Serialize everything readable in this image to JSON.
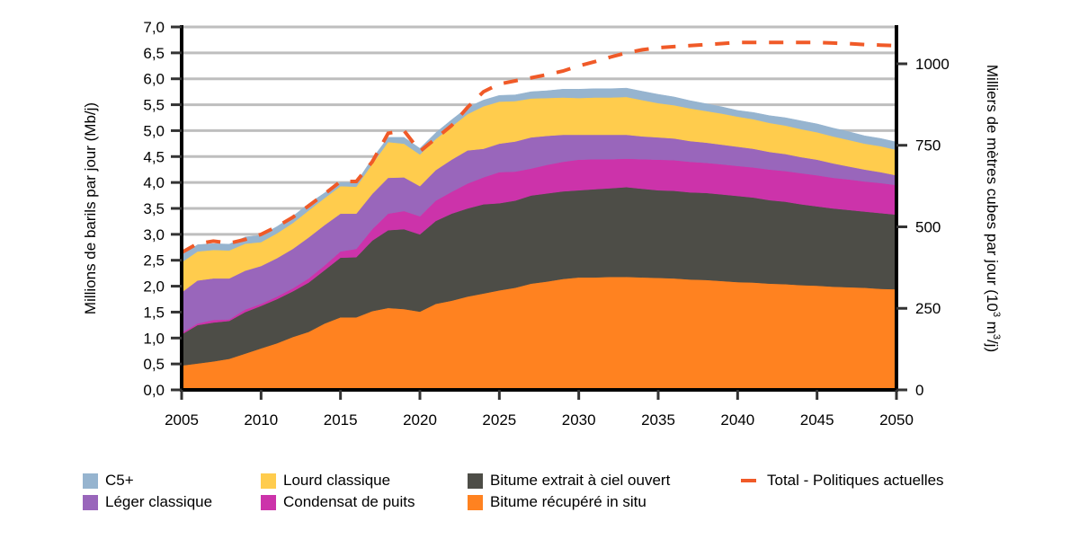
{
  "chart_data": {
    "type": "area",
    "stacked": true,
    "title": "",
    "xlabel": "",
    "ylabel": "Millions de barils par jour (Mb/j)",
    "y2label_main": "Milliers de mètres cubes par jour (10",
    "y2label_sup1": "3",
    "y2label_mid": " m",
    "y2label_sup2": "3",
    "y2label_end": "/j)",
    "xlim": [
      2005,
      2050
    ],
    "ylim": [
      0,
      7
    ],
    "y2lim": [
      0,
      1113
    ],
    "grid": true,
    "legend_position": "bottom",
    "x_ticks": [
      "2005",
      "2010",
      "2015",
      "2020",
      "2025",
      "2030",
      "2035",
      "2040",
      "2045",
      "2050"
    ],
    "y_ticks": [
      "0,0",
      "0,5",
      "1,0",
      "1,5",
      "2,0",
      "2,5",
      "3,0",
      "3,5",
      "4,0",
      "4,5",
      "5,0",
      "5,5",
      "6,0",
      "6,5",
      "7,0"
    ],
    "y2_ticks": [
      "0",
      "250",
      "500",
      "750",
      "1000"
    ],
    "x": [
      2005,
      2006,
      2007,
      2008,
      2009,
      2010,
      2011,
      2012,
      2013,
      2014,
      2015,
      2016,
      2017,
      2018,
      2019,
      2020,
      2021,
      2022,
      2023,
      2024,
      2025,
      2026,
      2027,
      2028,
      2029,
      2030,
      2031,
      2032,
      2033,
      2034,
      2035,
      2036,
      2037,
      2038,
      2039,
      2040,
      2041,
      2042,
      2043,
      2044,
      2045,
      2046,
      2047,
      2048,
      2049,
      2050
    ],
    "series": [
      {
        "name": "Bitume récupéré in situ",
        "color": "#FF8220",
        "values": [
          0.47,
          0.51,
          0.55,
          0.6,
          0.7,
          0.8,
          0.9,
          1.02,
          1.12,
          1.28,
          1.4,
          1.4,
          1.52,
          1.58,
          1.56,
          1.51,
          1.66,
          1.72,
          1.8,
          1.86,
          1.92,
          1.97,
          2.05,
          2.09,
          2.14,
          2.17,
          2.17,
          2.18,
          2.18,
          2.17,
          2.16,
          2.15,
          2.13,
          2.12,
          2.1,
          2.08,
          2.07,
          2.05,
          2.04,
          2.02,
          2.01,
          1.99,
          1.98,
          1.97,
          1.95,
          1.94
        ]
      },
      {
        "name": "Bitume extrait à ciel ouvert",
        "color": "#4D4D47",
        "values": [
          0.6,
          0.74,
          0.75,
          0.73,
          0.8,
          0.82,
          0.85,
          0.88,
          0.95,
          1.03,
          1.15,
          1.16,
          1.36,
          1.5,
          1.54,
          1.49,
          1.6,
          1.68,
          1.7,
          1.72,
          1.68,
          1.68,
          1.7,
          1.7,
          1.69,
          1.68,
          1.7,
          1.71,
          1.73,
          1.71,
          1.69,
          1.69,
          1.68,
          1.68,
          1.67,
          1.66,
          1.64,
          1.61,
          1.59,
          1.56,
          1.53,
          1.51,
          1.49,
          1.47,
          1.46,
          1.44
        ]
      },
      {
        "name": "Condensat de puits",
        "color": "#CC33AA",
        "values": [
          0.03,
          0.03,
          0.05,
          0.03,
          0.05,
          0.04,
          0.05,
          0.06,
          0.08,
          0.09,
          0.12,
          0.16,
          0.22,
          0.32,
          0.35,
          0.35,
          0.39,
          0.42,
          0.48,
          0.52,
          0.6,
          0.56,
          0.52,
          0.55,
          0.57,
          0.59,
          0.58,
          0.56,
          0.55,
          0.57,
          0.59,
          0.59,
          0.59,
          0.58,
          0.58,
          0.58,
          0.58,
          0.59,
          0.59,
          0.6,
          0.6,
          0.59,
          0.59,
          0.58,
          0.58,
          0.57
        ]
      },
      {
        "name": "Léger classique",
        "color": "#9966BB",
        "values": [
          0.78,
          0.83,
          0.8,
          0.79,
          0.75,
          0.73,
          0.74,
          0.76,
          0.79,
          0.78,
          0.73,
          0.68,
          0.68,
          0.69,
          0.65,
          0.58,
          0.59,
          0.62,
          0.64,
          0.55,
          0.55,
          0.58,
          0.6,
          0.56,
          0.52,
          0.48,
          0.47,
          0.47,
          0.46,
          0.44,
          0.43,
          0.42,
          0.4,
          0.39,
          0.38,
          0.37,
          0.36,
          0.34,
          0.33,
          0.31,
          0.3,
          0.28,
          0.25,
          0.23,
          0.21,
          0.19
        ]
      },
      {
        "name": "Lourd classique",
        "color": "#FFCC4D",
        "values": [
          0.58,
          0.56,
          0.55,
          0.54,
          0.52,
          0.46,
          0.48,
          0.5,
          0.52,
          0.52,
          0.53,
          0.52,
          0.58,
          0.69,
          0.65,
          0.61,
          0.6,
          0.64,
          0.7,
          0.82,
          0.81,
          0.78,
          0.75,
          0.73,
          0.72,
          0.71,
          0.72,
          0.72,
          0.73,
          0.7,
          0.66,
          0.64,
          0.63,
          0.61,
          0.6,
          0.58,
          0.57,
          0.56,
          0.55,
          0.54,
          0.53,
          0.52,
          0.51,
          0.5,
          0.5,
          0.49
        ]
      },
      {
        "name": "C5+",
        "color": "#96B4CF",
        "values": [
          0.14,
          0.13,
          0.12,
          0.12,
          0.13,
          0.13,
          0.13,
          0.13,
          0.13,
          0.1,
          0.07,
          0.08,
          0.1,
          0.09,
          0.12,
          0.12,
          0.12,
          0.13,
          0.13,
          0.12,
          0.12,
          0.12,
          0.13,
          0.14,
          0.16,
          0.17,
          0.17,
          0.17,
          0.17,
          0.17,
          0.17,
          0.16,
          0.15,
          0.14,
          0.13,
          0.12,
          0.13,
          0.14,
          0.15,
          0.16,
          0.16,
          0.16,
          0.16,
          0.15,
          0.15,
          0.15
        ]
      }
    ],
    "line_series": {
      "name": "Total - Politiques actuelles",
      "color": "#F05A28",
      "style": "dashed",
      "values": [
        2.65,
        2.82,
        2.87,
        2.83,
        2.9,
        3.0,
        3.15,
        3.33,
        3.55,
        3.78,
        4.02,
        4.02,
        4.4,
        4.95,
        5.0,
        4.6,
        4.85,
        5.1,
        5.45,
        5.75,
        5.9,
        5.96,
        6.02,
        6.08,
        6.15,
        6.25,
        6.33,
        6.42,
        6.5,
        6.56,
        6.6,
        6.62,
        6.64,
        6.66,
        6.68,
        6.7,
        6.7,
        6.7,
        6.7,
        6.7,
        6.7,
        6.69,
        6.68,
        6.66,
        6.65,
        6.64
      ]
    }
  },
  "legend": {
    "items": [
      {
        "label": "C5+",
        "color": "#96B4CF",
        "kind": "swatch"
      },
      {
        "label": "Léger classique",
        "color": "#9966BB",
        "kind": "swatch"
      },
      {
        "label": "Lourd classique",
        "color": "#FFCC4D",
        "kind": "swatch"
      },
      {
        "label": "Condensat de puits",
        "color": "#CC33AA",
        "kind": "swatch"
      },
      {
        "label": "Bitume extrait à ciel ouvert",
        "color": "#4D4D47",
        "kind": "swatch"
      },
      {
        "label": "Bitume récupéré in situ",
        "color": "#FF8220",
        "kind": "swatch"
      },
      {
        "label": "Total - Politiques actuelles",
        "color": "#F05A28",
        "kind": "line"
      }
    ]
  }
}
